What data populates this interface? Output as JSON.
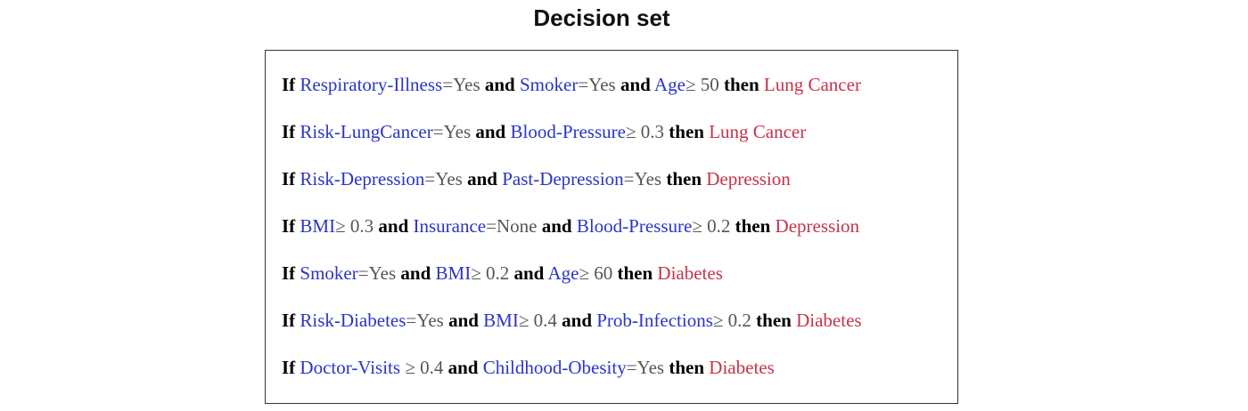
{
  "title": "Decision set",
  "keywords": {
    "if": "If",
    "and": "and",
    "then": "then"
  },
  "colors": {
    "keyword": "#000000",
    "feature": "#2a35c4",
    "value": "#555555",
    "outcome": "#c4344a"
  },
  "rules": [
    {
      "conditions": [
        {
          "feature": "Respiratory-Illness",
          "op": "=",
          "value": "Yes"
        },
        {
          "feature": "Smoker",
          "op": "=",
          "value": "Yes"
        },
        {
          "feature": "Age",
          "op": "≥",
          "value": "50"
        }
      ],
      "outcome": "Lung Cancer"
    },
    {
      "conditions": [
        {
          "feature": "Risk-LungCancer",
          "op": "=",
          "value": "Yes"
        },
        {
          "feature": "Blood-Pressure",
          "op": "≥",
          "value": "0.3"
        }
      ],
      "outcome": "Lung Cancer"
    },
    {
      "conditions": [
        {
          "feature": "Risk-Depression",
          "op": "=",
          "value": "Yes"
        },
        {
          "feature": "Past-Depression",
          "op": "=",
          "value": "Yes"
        }
      ],
      "outcome": "Depression"
    },
    {
      "conditions": [
        {
          "feature": "BMI",
          "op": "≥",
          "value": "0.3"
        },
        {
          "feature": "Insurance",
          "op": "=",
          "value": "None"
        },
        {
          "feature": "Blood-Pressure",
          "op": "≥",
          "value": "0.2"
        }
      ],
      "outcome": "Depression"
    },
    {
      "conditions": [
        {
          "feature": "Smoker",
          "op": "=",
          "value": "Yes"
        },
        {
          "feature": "BMI",
          "op": "≥",
          "value": "0.2"
        },
        {
          "feature": "Age",
          "op": "≥",
          "value": "60"
        }
      ],
      "outcome": "Diabetes"
    },
    {
      "conditions": [
        {
          "feature": "Risk-Diabetes",
          "op": "=",
          "value": "Yes"
        },
        {
          "feature": "BMI",
          "op": "≥",
          "value": "0.4"
        },
        {
          "feature": "Prob-Infections",
          "op": "≥",
          "value": "0.2"
        }
      ],
      "outcome": "Diabetes"
    },
    {
      "conditions": [
        {
          "feature": "Doctor-Visits",
          "op": "≥",
          "value": "0.4",
          "spaced": true
        },
        {
          "feature": "Childhood-Obesity",
          "op": "=",
          "value": "Yes"
        }
      ],
      "outcome": "Diabetes"
    }
  ]
}
